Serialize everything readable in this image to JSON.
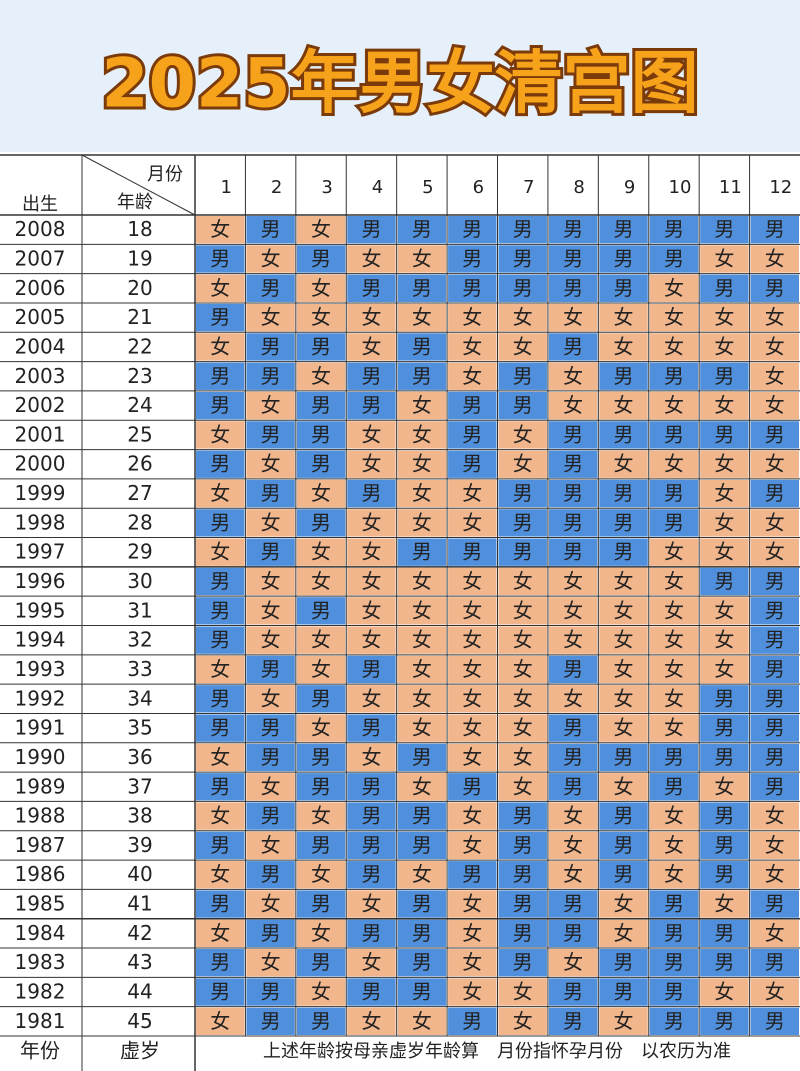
{
  "header": {
    "title": "2025年男女清宫图"
  },
  "table": {
    "corner_birth": "出生",
    "corner_month": "月份",
    "corner_age": "年龄",
    "months": [
      1,
      2,
      3,
      4,
      5,
      6,
      7,
      8,
      9,
      10,
      11,
      12
    ],
    "colors": {
      "男": "#4f8fdb",
      "女": "#f2b68c"
    },
    "rows": [
      {
        "year": 2008,
        "age": 18,
        "cells": [
          "女",
          "男",
          "女",
          "男",
          "男",
          "男",
          "男",
          "男",
          "男",
          "男",
          "男",
          "男"
        ]
      },
      {
        "year": 2007,
        "age": 19,
        "cells": [
          "男",
          "女",
          "男",
          "女",
          "女",
          "男",
          "男",
          "男",
          "男",
          "男",
          "女",
          "女"
        ]
      },
      {
        "year": 2006,
        "age": 20,
        "cells": [
          "女",
          "男",
          "女",
          "男",
          "男",
          "男",
          "男",
          "男",
          "男",
          "女",
          "男",
          "男"
        ]
      },
      {
        "year": 2005,
        "age": 21,
        "cells": [
          "男",
          "女",
          "女",
          "女",
          "女",
          "女",
          "女",
          "女",
          "女",
          "女",
          "女",
          "女"
        ]
      },
      {
        "year": 2004,
        "age": 22,
        "cells": [
          "女",
          "男",
          "男",
          "女",
          "男",
          "女",
          "女",
          "男",
          "女",
          "女",
          "女",
          "女"
        ]
      },
      {
        "year": 2003,
        "age": 23,
        "cells": [
          "男",
          "男",
          "女",
          "男",
          "男",
          "女",
          "男",
          "女",
          "男",
          "男",
          "男",
          "女"
        ]
      },
      {
        "year": 2002,
        "age": 24,
        "cells": [
          "男",
          "女",
          "男",
          "男",
          "女",
          "男",
          "男",
          "女",
          "女",
          "女",
          "女",
          "女"
        ]
      },
      {
        "year": 2001,
        "age": 25,
        "cells": [
          "女",
          "男",
          "男",
          "女",
          "女",
          "男",
          "女",
          "男",
          "男",
          "男",
          "男",
          "男"
        ]
      },
      {
        "year": 2000,
        "age": 26,
        "cells": [
          "男",
          "女",
          "男",
          "女",
          "女",
          "男",
          "女",
          "男",
          "女",
          "女",
          "女",
          "女"
        ]
      },
      {
        "year": 1999,
        "age": 27,
        "cells": [
          "女",
          "男",
          "女",
          "男",
          "女",
          "女",
          "男",
          "男",
          "男",
          "男",
          "女",
          "男"
        ]
      },
      {
        "year": 1998,
        "age": 28,
        "cells": [
          "男",
          "女",
          "男",
          "女",
          "女",
          "女",
          "男",
          "男",
          "男",
          "男",
          "女",
          "女"
        ]
      },
      {
        "year": 1997,
        "age": 29,
        "cells": [
          "女",
          "男",
          "女",
          "女",
          "男",
          "男",
          "男",
          "男",
          "男",
          "女",
          "女",
          "女"
        ]
      },
      {
        "year": 1996,
        "age": 30,
        "cells": [
          "男",
          "女",
          "女",
          "女",
          "女",
          "女",
          "女",
          "女",
          "女",
          "女",
          "男",
          "男"
        ]
      },
      {
        "year": 1995,
        "age": 31,
        "cells": [
          "男",
          "女",
          "男",
          "女",
          "女",
          "女",
          "女",
          "女",
          "女",
          "女",
          "女",
          "男"
        ]
      },
      {
        "year": 1994,
        "age": 32,
        "cells": [
          "男",
          "女",
          "女",
          "女",
          "女",
          "女",
          "女",
          "女",
          "女",
          "女",
          "女",
          "男"
        ]
      },
      {
        "year": 1993,
        "age": 33,
        "cells": [
          "女",
          "男",
          "女",
          "男",
          "女",
          "女",
          "女",
          "男",
          "女",
          "女",
          "女",
          "男"
        ]
      },
      {
        "year": 1992,
        "age": 34,
        "cells": [
          "男",
          "女",
          "男",
          "女",
          "女",
          "女",
          "女",
          "女",
          "女",
          "女",
          "男",
          "男"
        ]
      },
      {
        "year": 1991,
        "age": 35,
        "cells": [
          "男",
          "男",
          "女",
          "男",
          "女",
          "女",
          "女",
          "男",
          "女",
          "女",
          "男",
          "男"
        ]
      },
      {
        "year": 1990,
        "age": 36,
        "cells": [
          "女",
          "男",
          "男",
          "女",
          "男",
          "女",
          "女",
          "男",
          "男",
          "男",
          "男",
          "男"
        ]
      },
      {
        "year": 1989,
        "age": 37,
        "cells": [
          "男",
          "女",
          "男",
          "男",
          "女",
          "男",
          "女",
          "男",
          "女",
          "男",
          "女",
          "男"
        ]
      },
      {
        "year": 1988,
        "age": 38,
        "cells": [
          "女",
          "男",
          "女",
          "男",
          "男",
          "女",
          "男",
          "女",
          "男",
          "女",
          "男",
          "女"
        ]
      },
      {
        "year": 1987,
        "age": 39,
        "cells": [
          "男",
          "女",
          "男",
          "男",
          "男",
          "女",
          "男",
          "女",
          "男",
          "女",
          "男",
          "女"
        ]
      },
      {
        "year": 1986,
        "age": 40,
        "cells": [
          "女",
          "男",
          "女",
          "男",
          "女",
          "男",
          "男",
          "女",
          "男",
          "女",
          "男",
          "女"
        ]
      },
      {
        "year": 1985,
        "age": 41,
        "cells": [
          "男",
          "女",
          "男",
          "女",
          "男",
          "女",
          "男",
          "男",
          "女",
          "男",
          "女",
          "男"
        ]
      },
      {
        "year": 1984,
        "age": 42,
        "cells": [
          "女",
          "男",
          "女",
          "男",
          "男",
          "女",
          "男",
          "男",
          "女",
          "男",
          "男",
          "女"
        ]
      },
      {
        "year": 1983,
        "age": 43,
        "cells": [
          "男",
          "女",
          "男",
          "女",
          "男",
          "女",
          "男",
          "女",
          "男",
          "男",
          "男",
          "男"
        ]
      },
      {
        "year": 1982,
        "age": 44,
        "cells": [
          "男",
          "男",
          "女",
          "男",
          "男",
          "女",
          "女",
          "男",
          "男",
          "男",
          "女",
          "女"
        ]
      },
      {
        "year": 1981,
        "age": 45,
        "cells": [
          "女",
          "男",
          "男",
          "女",
          "女",
          "男",
          "女",
          "男",
          "女",
          "男",
          "男",
          "男"
        ]
      }
    ],
    "footer": {
      "year": "年份",
      "age": "虚岁",
      "note": "上述年龄按母亲虚岁年龄算　月份指怀孕月份　以农历为准"
    }
  }
}
